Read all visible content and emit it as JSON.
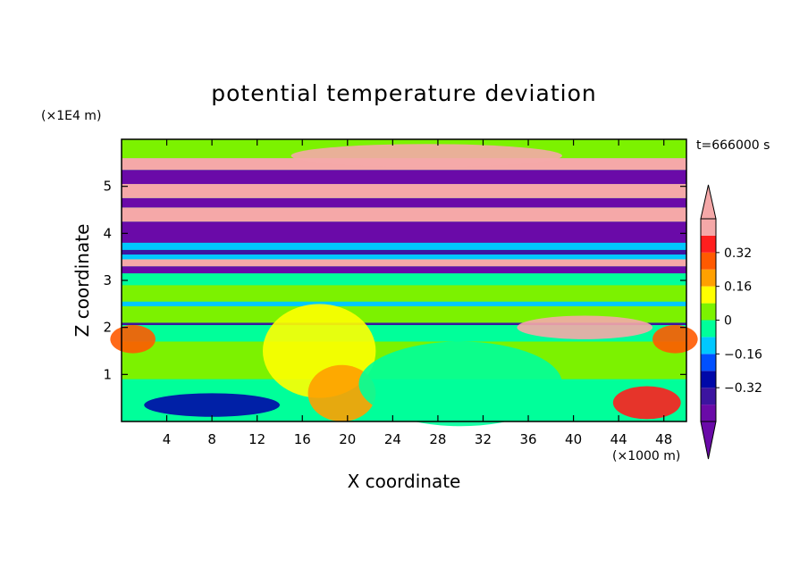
{
  "chart_data": {
    "type": "heatmap",
    "title": "potential temperature deviation",
    "xlabel": "X coordinate",
    "ylabel": "Z coordinate",
    "x_unit": "(×1000 m)",
    "y_unit": "(×1E4 m)",
    "annotation": "t=666000 s",
    "xlim": [
      0,
      50
    ],
    "ylim": [
      0,
      6
    ],
    "x_ticks": [
      4,
      8,
      12,
      16,
      20,
      24,
      28,
      32,
      36,
      40,
      44,
      48
    ],
    "y_ticks": [
      1,
      2,
      3,
      4,
      5
    ],
    "colorbar": {
      "levels": [
        -0.48,
        -0.4,
        -0.32,
        -0.24,
        -0.16,
        -0.08,
        0,
        0.08,
        0.16,
        0.24,
        0.32,
        0.4,
        0.48
      ],
      "labels": [
        "0.32",
        "0.16",
        "0",
        "−0.16",
        "−0.32"
      ],
      "colors": [
        "#6a0aa8",
        "#3c14a0",
        "#0008a8",
        "#0050ff",
        "#00c8ff",
        "#00ff9a",
        "#7cf200",
        "#ffff00",
        "#ffa000",
        "#ff5a00",
        "#ff1e1e",
        "#f5a8a8"
      ],
      "extend": "both"
    },
    "bands": [
      {
        "z0": 0.0,
        "z1": 0.9,
        "v": -0.03
      },
      {
        "z0": 0.9,
        "z1": 1.7,
        "v": 0.03
      },
      {
        "z0": 1.7,
        "z1": 2.05,
        "v": -0.02
      },
      {
        "z0": 2.05,
        "z1": 2.1,
        "v": -0.35
      },
      {
        "z0": 2.1,
        "z1": 2.45,
        "v": 0.03
      },
      {
        "z0": 2.45,
        "z1": 2.55,
        "v": -0.12
      },
      {
        "z0": 2.55,
        "z1": 2.9,
        "v": 0.06
      },
      {
        "z0": 2.9,
        "z1": 3.15,
        "v": -0.03
      },
      {
        "z0": 3.15,
        "z1": 3.3,
        "v": -0.45
      },
      {
        "z0": 3.3,
        "z1": 3.45,
        "v": 0.5
      },
      {
        "z0": 3.45,
        "z1": 3.55,
        "v": -0.1
      },
      {
        "z0": 3.55,
        "z1": 3.65,
        "v": -0.4
      },
      {
        "z0": 3.65,
        "z1": 3.8,
        "v": -0.15
      },
      {
        "z0": 3.8,
        "z1": 4.25,
        "v": -0.45
      },
      {
        "z0": 4.25,
        "z1": 4.55,
        "v": 0.5
      },
      {
        "z0": 4.55,
        "z1": 4.75,
        "v": -0.45
      },
      {
        "z0": 4.75,
        "z1": 5.05,
        "v": 0.5
      },
      {
        "z0": 5.05,
        "z1": 5.35,
        "v": -0.45
      },
      {
        "z0": 5.35,
        "z1": 5.6,
        "v": 0.5
      },
      {
        "z0": 5.6,
        "z1": 6.0,
        "v": 0.02
      }
    ],
    "blobs": [
      {
        "x": 17.5,
        "z": 1.5,
        "rx": 5,
        "rz": 1.0,
        "v": 0.12
      },
      {
        "x": 19.5,
        "z": 0.6,
        "rx": 3,
        "rz": 0.6,
        "v": 0.2
      },
      {
        "x": 30,
        "z": 0.8,
        "rx": 9,
        "rz": 0.9,
        "v": -0.05
      },
      {
        "x": 8,
        "z": 0.35,
        "rx": 6,
        "rz": 0.25,
        "v": -0.3
      },
      {
        "x": 46.5,
        "z": 0.4,
        "rx": 3,
        "rz": 0.35,
        "v": 0.34
      },
      {
        "x": 41,
        "z": 2.0,
        "rx": 6,
        "rz": 0.25,
        "v": 0.5
      },
      {
        "x": 1,
        "z": 1.75,
        "rx": 2,
        "rz": 0.3,
        "v": 0.28
      },
      {
        "x": 49,
        "z": 1.75,
        "rx": 2,
        "rz": 0.3,
        "v": 0.28
      },
      {
        "x": 27,
        "z": 5.65,
        "rx": 12,
        "rz": 0.25,
        "v": 0.5
      }
    ]
  }
}
